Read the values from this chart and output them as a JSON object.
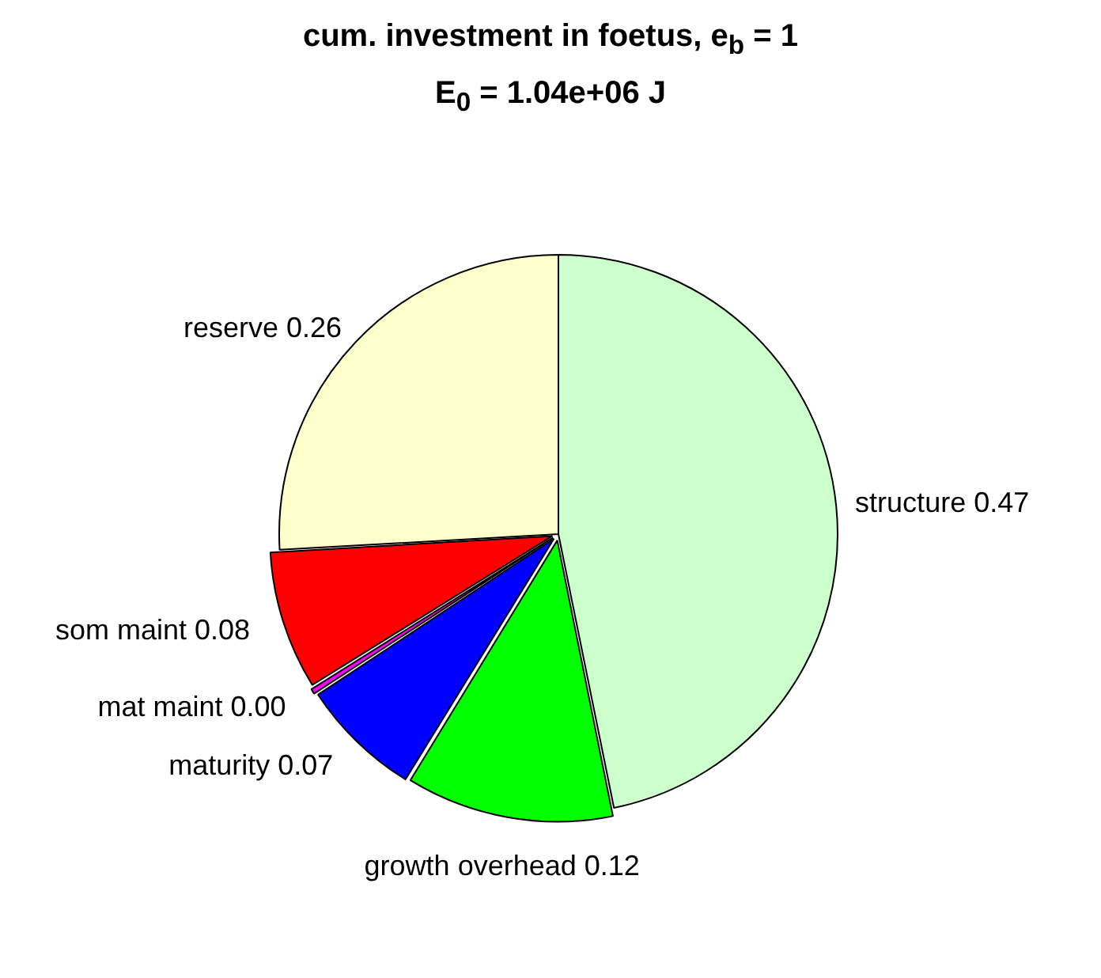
{
  "chart_data": {
    "type": "pie",
    "title": "cum. investment in foetus, e$_{b}$ = 1",
    "subtitle": "E$_{0}$ = 1.04e+06 J",
    "categories": [
      "structure",
      "growth overhead",
      "maturity",
      "mat maint",
      "som maint",
      "reserve"
    ],
    "values": [
      0.47,
      0.12,
      0.07,
      0.004,
      0.08,
      0.26
    ],
    "value_labels": [
      "0.47",
      "0.12",
      "0.07",
      "0.00",
      "0.08",
      "0.26"
    ],
    "colors": [
      "#ccffcc",
      "#00ff00",
      "#0000ff",
      "#ff00ff",
      "#ff0000",
      "#ffffcc"
    ],
    "legend": false
  }
}
